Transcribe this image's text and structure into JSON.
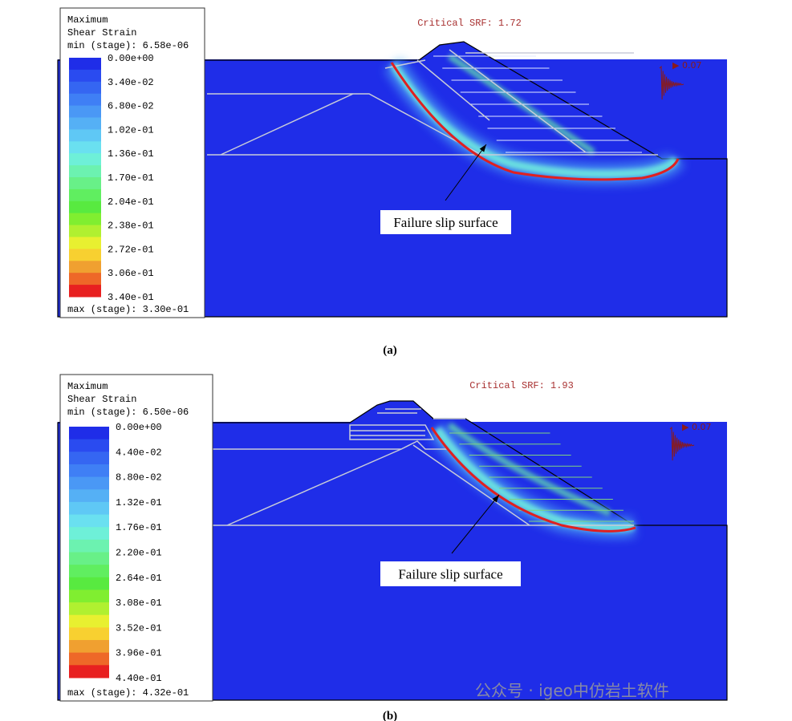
{
  "panels": [
    {
      "label": "(a)",
      "legend": {
        "title": [
          "Maximum",
          "Shear Strain"
        ],
        "min": "min (stage): 6.58e-06",
        "levels": [
          "0.00e+00",
          "3.40e-02",
          "6.80e-02",
          "1.02e-01",
          "1.36e-01",
          "1.70e-01",
          "2.04e-01",
          "2.38e-01",
          "2.72e-01",
          "3.06e-01",
          "3.40e-01"
        ],
        "max": "max (stage): 3.30e-01",
        "colors": [
          "#1f2de8",
          "#2a4bf0",
          "#3566f2",
          "#3f7ff5",
          "#4a98f5",
          "#55b0f5",
          "#5fc8f5",
          "#6ae0f0",
          "#6ef0d8",
          "#6cf2b0",
          "#68f088",
          "#60ee60",
          "#58ea40",
          "#80ee30",
          "#b0f030",
          "#e8f030",
          "#f8d030",
          "#f0a030",
          "#ee6828",
          "#e82020"
        ]
      },
      "critical_srf": "Critical SRF: 1.72",
      "load_label": "▶ 0.07",
      "annotation": "Failure slip surface"
    },
    {
      "label": "(b)",
      "legend": {
        "title": [
          "Maximum",
          "Shear Strain"
        ],
        "min": "min (stage): 6.50e-06",
        "levels": [
          "0.00e+00",
          "4.40e-02",
          "8.80e-02",
          "1.32e-01",
          "1.76e-01",
          "2.20e-01",
          "2.64e-01",
          "3.08e-01",
          "3.52e-01",
          "3.96e-01",
          "4.40e-01"
        ],
        "max": "max (stage): 4.32e-01",
        "colors": [
          "#1f2de8",
          "#2a4bf0",
          "#3566f2",
          "#3f7ff5",
          "#4a98f5",
          "#55b0f5",
          "#5fc8f5",
          "#6ae0f0",
          "#6ef0d8",
          "#6cf2b0",
          "#68f088",
          "#60ee60",
          "#58ea40",
          "#80ee30",
          "#b0f030",
          "#e8f030",
          "#f8d030",
          "#f0a030",
          "#ee6828",
          "#e82020"
        ]
      },
      "critical_srf": "Critical SRF: 1.93",
      "load_label": "▶ 0.07",
      "annotation": "Failure slip surface"
    }
  ],
  "watermark": "公众号 · igeo中仿岩土软件"
}
